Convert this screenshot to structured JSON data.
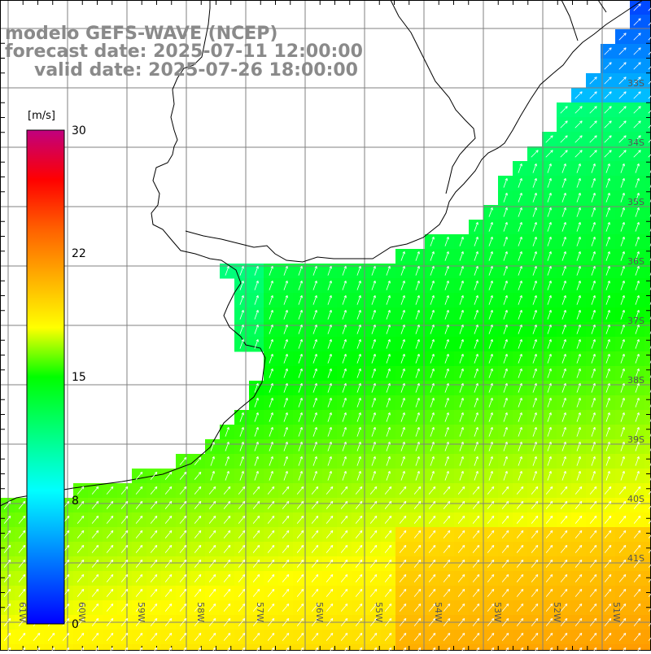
{
  "header": {
    "title": "modelo GEFS-WAVE (NCEP)",
    "forecast": "forecast date: 2025-07-11 12:00:00",
    "valid": "valid date: 2025-07-26 18:00:00"
  },
  "colorbar": {
    "unit": "[m/s]",
    "ticks": [
      "30",
      "22",
      "15",
      "8",
      "0"
    ]
  },
  "lat_labels": [
    "33S",
    "34S",
    "35S",
    "36S",
    "37S",
    "38S",
    "39S",
    "40S",
    "41S"
  ],
  "lon_labels": [
    "61W",
    "60W",
    "59W",
    "58W",
    "57W",
    "56W",
    "55W",
    "54W",
    "53W",
    "52W",
    "51W"
  ],
  "field": {
    "variable": "wind speed",
    "colormap": [
      "#0000ff",
      "#00ffff",
      "#00ff00",
      "#ffff00",
      "#ff8000",
      "#ff0000",
      "#c0007f"
    ],
    "arrow_color": "#ffffff",
    "land_color": "#ffffff",
    "coastline_color": "#000000",
    "grid_color": "#808080"
  }
}
